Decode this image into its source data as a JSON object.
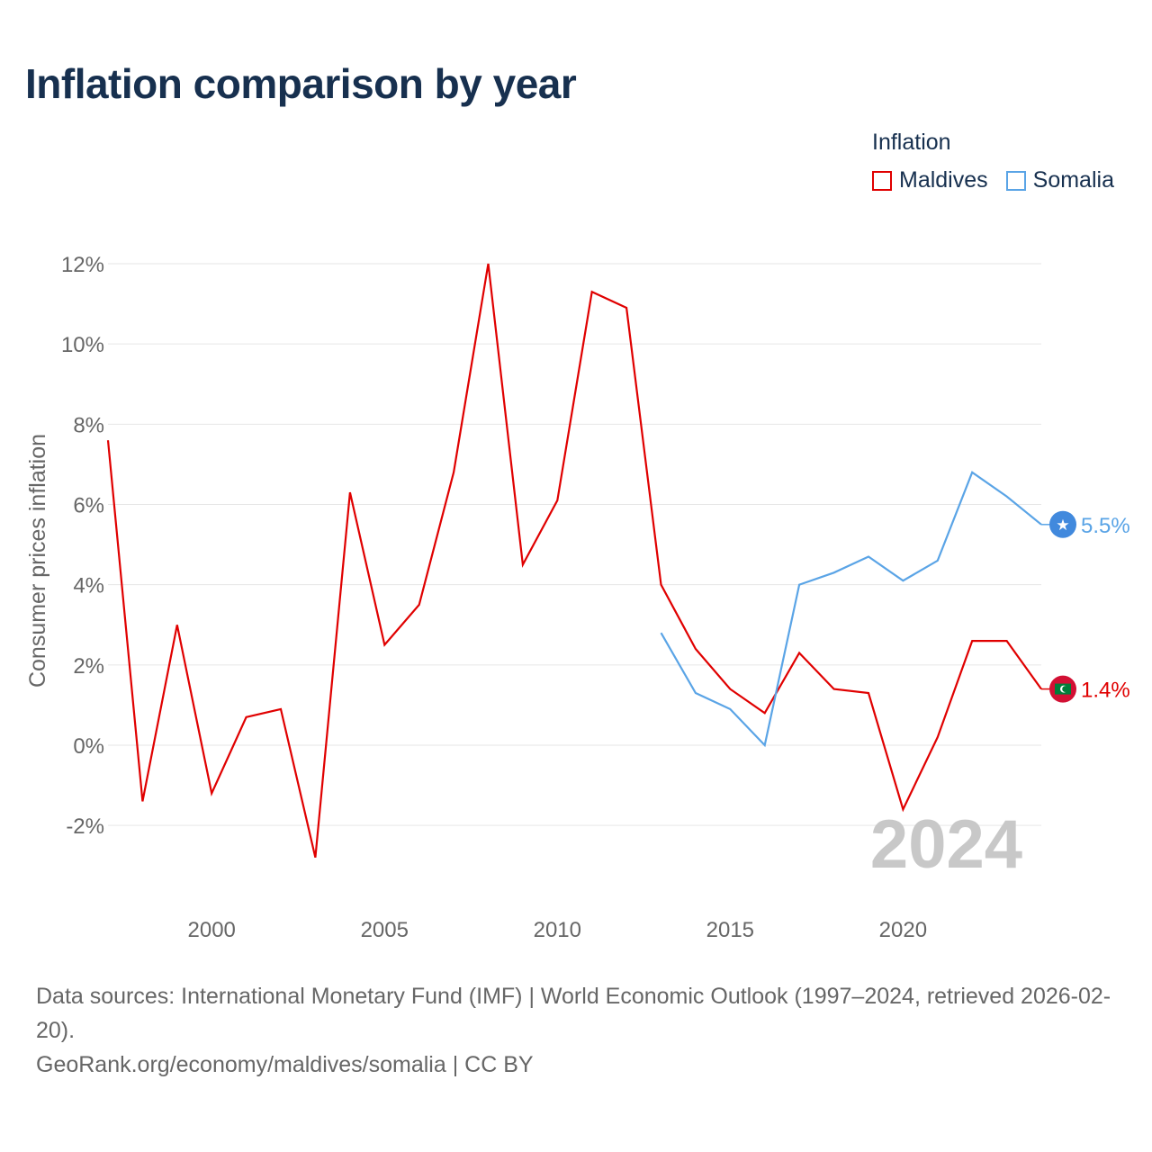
{
  "title": "Inflation comparison by year",
  "legend": {
    "title": "Inflation",
    "items": [
      {
        "label": "Maldives",
        "color": "#e00000"
      },
      {
        "label": "Somalia",
        "color": "#5aa4e6"
      }
    ]
  },
  "footer": {
    "source": "Data sources: International Monetary Fund (IMF) | World Economic Outlook (1997–2024, retrieved 2026-02-20).",
    "credit": "GeoRank.org/economy/maldives/somalia | CC BY"
  },
  "chart_data": {
    "type": "line",
    "title": "Inflation comparison by year",
    "xlabel": "",
    "ylabel": "Consumer prices inflation",
    "xlim": [
      1997,
      2024
    ],
    "ylim": [
      -3.5,
      12.5
    ],
    "grid": true,
    "legend_position": "top-right",
    "watermark_year": "2024",
    "x_ticks": [
      {
        "value": 2000,
        "label": "2000"
      },
      {
        "value": 2005,
        "label": "2005"
      },
      {
        "value": 2010,
        "label": "2010"
      },
      {
        "value": 2015,
        "label": "2015"
      },
      {
        "value": 2020,
        "label": "2020"
      }
    ],
    "y_ticks": [
      {
        "value": 12,
        "label": "12%"
      },
      {
        "value": 10,
        "label": "10%"
      },
      {
        "value": 8,
        "label": "8%"
      },
      {
        "value": 6,
        "label": "6%"
      },
      {
        "value": 4,
        "label": "4%"
      },
      {
        "value": 2,
        "label": "2%"
      },
      {
        "value": 0,
        "label": "0%"
      },
      {
        "value": -2,
        "label": "-2%"
      }
    ],
    "series": [
      {
        "name": "Maldives",
        "color": "#e00000",
        "end_label": "1.4%",
        "marker_icon": "maldives-flag-icon",
        "x": [
          1997,
          1998,
          1999,
          2000,
          2001,
          2002,
          2003,
          2004,
          2005,
          2006,
          2007,
          2008,
          2009,
          2010,
          2011,
          2012,
          2013,
          2014,
          2015,
          2016,
          2017,
          2018,
          2019,
          2020,
          2021,
          2022,
          2023,
          2024
        ],
        "values": [
          7.6,
          -1.4,
          3.0,
          -1.2,
          0.7,
          0.9,
          -2.8,
          6.3,
          2.5,
          3.5,
          6.8,
          12.0,
          4.5,
          6.1,
          11.3,
          10.9,
          4.0,
          2.4,
          1.4,
          0.8,
          2.3,
          1.4,
          1.3,
          -1.6,
          0.2,
          2.6,
          2.6,
          1.4
        ]
      },
      {
        "name": "Somalia",
        "color": "#5aa4e6",
        "end_label": "5.5%",
        "marker_icon": "somalia-flag-icon",
        "x": [
          2013,
          2014,
          2015,
          2016,
          2017,
          2018,
          2019,
          2020,
          2021,
          2022,
          2023,
          2024
        ],
        "values": [
          2.8,
          1.3,
          0.9,
          0.0,
          4.0,
          4.3,
          4.7,
          4.1,
          4.6,
          6.8,
          6.2,
          5.5
        ]
      }
    ]
  }
}
